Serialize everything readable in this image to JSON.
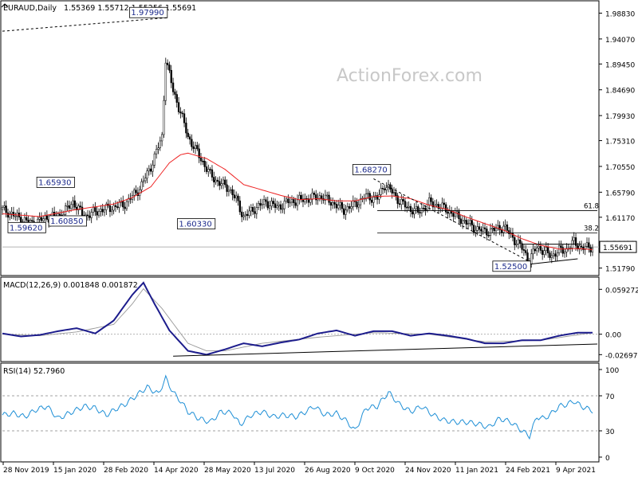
{
  "chart_data": {
    "type": "candlestick",
    "symbol": "EURAUD,Daily",
    "ohlc": "1.55369 1.55712 1.55256 1.55691",
    "watermark": "ActionForex.com",
    "last_price": "1.55691",
    "price_axis": {
      "range": [
        1.51,
        1.992
      ],
      "ticks": [
        "1.98830",
        "1.94070",
        "1.89450",
        "1.84690",
        "1.79930",
        "1.75310",
        "1.70550",
        "1.65790",
        "1.61170",
        "1.56410",
        "1.51790"
      ]
    },
    "x_axis": {
      "labels": [
        "28 Nov 2019",
        "15 Jan 2020",
        "28 Feb 2020",
        "14 Apr 2020",
        "28 May 2020",
        "13 Jul 2020",
        "26 Aug 2020",
        "9 Oct 2020",
        "24 Nov 2020",
        "11 Jan 2021",
        "24 Feb 2021",
        "9 Apr 2021"
      ]
    },
    "annotations": [
      {
        "text": "1.97990",
        "type": "high",
        "date": "mid Mar 2020",
        "value": 1.9799
      },
      {
        "text": "1.65930",
        "type": "high",
        "date": "late Dec 2019",
        "value": 1.6593
      },
      {
        "text": "1.59620",
        "type": "low",
        "date": "early Dec 2019",
        "value": 1.5962
      },
      {
        "text": "1.60850",
        "type": "low",
        "date": "late Dec 2019",
        "value": 1.6085
      },
      {
        "text": "1.60330",
        "type": "low",
        "date": "late May 2020",
        "value": 1.6033
      },
      {
        "text": "1.68270",
        "type": "high",
        "date": "Oct 2020",
        "value": 1.6827
      },
      {
        "text": "1.52500",
        "type": "low",
        "date": "Feb 2021",
        "value": 1.525
      }
    ],
    "fib_levels": [
      {
        "label": "61.8",
        "value": 1.6238
      },
      {
        "label": "38.2",
        "value": 1.5826
      }
    ],
    "series_close_approx": [
      [
        0,
        1.626
      ],
      [
        8,
        1.612
      ],
      [
        16,
        1.6
      ],
      [
        24,
        1.611
      ],
      [
        32,
        1.616
      ],
      [
        38,
        1.64
      ],
      [
        44,
        1.613
      ],
      [
        52,
        1.624
      ],
      [
        58,
        1.629
      ],
      [
        66,
        1.636
      ],
      [
        74,
        1.665
      ],
      [
        80,
        1.705
      ],
      [
        86,
        1.76
      ],
      [
        88,
        1.905
      ],
      [
        92,
        1.845
      ],
      [
        96,
        1.805
      ],
      [
        100,
        1.76
      ],
      [
        106,
        1.725
      ],
      [
        112,
        1.69
      ],
      [
        116,
        1.677
      ],
      [
        122,
        1.665
      ],
      [
        126,
        1.644
      ],
      [
        130,
        1.612
      ],
      [
        136,
        1.628
      ],
      [
        142,
        1.64
      ],
      [
        148,
        1.63
      ],
      [
        154,
        1.64
      ],
      [
        160,
        1.643
      ],
      [
        166,
        1.647
      ],
      [
        172,
        1.65
      ],
      [
        178,
        1.638
      ],
      [
        184,
        1.625
      ],
      [
        190,
        1.636
      ],
      [
        196,
        1.65
      ],
      [
        202,
        1.646
      ],
      [
        206,
        1.672
      ],
      [
        210,
        1.658
      ],
      [
        214,
        1.641
      ],
      [
        218,
        1.63
      ],
      [
        224,
        1.621
      ],
      [
        230,
        1.638
      ],
      [
        236,
        1.632
      ],
      [
        242,
        1.62
      ],
      [
        248,
        1.606
      ],
      [
        254,
        1.593
      ],
      [
        260,
        1.585
      ],
      [
        266,
        1.589
      ],
      [
        270,
        1.595
      ],
      [
        276,
        1.57
      ],
      [
        280,
        1.555
      ],
      [
        284,
        1.532
      ],
      [
        288,
        1.558
      ],
      [
        292,
        1.548
      ],
      [
        296,
        1.541
      ],
      [
        300,
        1.55
      ],
      [
        304,
        1.552
      ],
      [
        308,
        1.566
      ],
      [
        312,
        1.555
      ],
      [
        318,
        1.557
      ]
    ],
    "sma": {
      "range": [
        0,
        318
      ],
      "values_approx": [
        [
          0,
          1.618
        ],
        [
          20,
          1.613
        ],
        [
          40,
          1.626
        ],
        [
          60,
          1.636
        ],
        [
          70,
          1.648
        ],
        [
          80,
          1.668
        ],
        [
          90,
          1.712
        ],
        [
          96,
          1.727
        ],
        [
          100,
          1.73
        ],
        [
          110,
          1.72
        ],
        [
          120,
          1.7
        ],
        [
          130,
          1.672
        ],
        [
          140,
          1.662
        ],
        [
          150,
          1.652
        ],
        [
          160,
          1.644
        ],
        [
          170,
          1.646
        ],
        [
          180,
          1.642
        ],
        [
          190,
          1.642
        ],
        [
          200,
          1.65
        ],
        [
          210,
          1.651
        ],
        [
          220,
          1.646
        ],
        [
          230,
          1.634
        ],
        [
          240,
          1.626
        ],
        [
          250,
          1.612
        ],
        [
          260,
          1.6
        ],
        [
          270,
          1.588
        ],
        [
          280,
          1.572
        ],
        [
          290,
          1.56
        ],
        [
          300,
          1.553
        ],
        [
          310,
          1.554
        ],
        [
          318,
          1.552
        ]
      ]
    },
    "macd": {
      "label": "MACD(12,26,9) 0.001848 0.001872",
      "range": [
        -0.034,
        0.068
      ],
      "ticks": [
        "0.059272",
        "0.00",
        "-0.026978"
      ],
      "macd_approx": [
        [
          0,
          0.001
        ],
        [
          10,
          -0.003
        ],
        [
          20,
          -0.001
        ],
        [
          30,
          0.004
        ],
        [
          40,
          0.008
        ],
        [
          50,
          0.001
        ],
        [
          60,
          0.018
        ],
        [
          70,
          0.052
        ],
        [
          76,
          0.068
        ],
        [
          82,
          0.04
        ],
        [
          90,
          0.005
        ],
        [
          100,
          -0.022
        ],
        [
          110,
          -0.027
        ],
        [
          120,
          -0.02
        ],
        [
          130,
          -0.012
        ],
        [
          140,
          -0.016
        ],
        [
          150,
          -0.011
        ],
        [
          160,
          -0.007
        ],
        [
          170,
          0.001
        ],
        [
          180,
          0.005
        ],
        [
          190,
          -0.002
        ],
        [
          200,
          0.004
        ],
        [
          210,
          0.004
        ],
        [
          220,
          -0.002
        ],
        [
          230,
          0.001
        ],
        [
          240,
          -0.002
        ],
        [
          250,
          -0.006
        ],
        [
          260,
          -0.012
        ],
        [
          270,
          -0.012
        ],
        [
          280,
          -0.008
        ],
        [
          290,
          -0.008
        ],
        [
          300,
          -0.002
        ],
        [
          310,
          0.002
        ],
        [
          318,
          0.002
        ]
      ],
      "signal_approx": [
        [
          0,
          0.0
        ],
        [
          20,
          -0.002
        ],
        [
          40,
          0.003
        ],
        [
          60,
          0.013
        ],
        [
          70,
          0.04
        ],
        [
          76,
          0.06
        ],
        [
          86,
          0.034
        ],
        [
          100,
          -0.012
        ],
        [
          110,
          -0.022
        ],
        [
          120,
          -0.022
        ],
        [
          140,
          -0.012
        ],
        [
          170,
          -0.004
        ],
        [
          200,
          0.002
        ],
        [
          230,
          0.0
        ],
        [
          260,
          -0.01
        ],
        [
          290,
          -0.008
        ],
        [
          318,
          0.002
        ]
      ]
    },
    "rsi": {
      "label": "RSI(14) 52.7960",
      "range": [
        0,
        100
      ],
      "ticks": [
        "100",
        "70",
        "30",
        "0"
      ],
      "values_approx": [
        [
          0,
          48
        ],
        [
          6,
          50
        ],
        [
          12,
          46
        ],
        [
          18,
          54
        ],
        [
          24,
          58
        ],
        [
          30,
          44
        ],
        [
          36,
          50
        ],
        [
          44,
          58
        ],
        [
          50,
          56
        ],
        [
          56,
          48
        ],
        [
          62,
          56
        ],
        [
          66,
          60
        ],
        [
          72,
          70
        ],
        [
          78,
          80
        ],
        [
          84,
          72
        ],
        [
          88,
          90
        ],
        [
          92,
          74
        ],
        [
          96,
          64
        ],
        [
          100,
          52
        ],
        [
          106,
          44
        ],
        [
          112,
          40
        ],
        [
          118,
          52
        ],
        [
          124,
          50
        ],
        [
          128,
          37
        ],
        [
          134,
          48
        ],
        [
          140,
          52
        ],
        [
          146,
          46
        ],
        [
          152,
          48
        ],
        [
          158,
          46
        ],
        [
          162,
          50
        ],
        [
          168,
          58
        ],
        [
          174,
          48
        ],
        [
          180,
          50
        ],
        [
          186,
          40
        ],
        [
          190,
          30
        ],
        [
          196,
          56
        ],
        [
          202,
          58
        ],
        [
          208,
          74
        ],
        [
          214,
          60
        ],
        [
          220,
          52
        ],
        [
          226,
          58
        ],
        [
          232,
          48
        ],
        [
          238,
          42
        ],
        [
          244,
          40
        ],
        [
          250,
          40
        ],
        [
          256,
          38
        ],
        [
          262,
          34
        ],
        [
          268,
          44
        ],
        [
          274,
          40
        ],
        [
          280,
          30
        ],
        [
          284,
          24
        ],
        [
          288,
          46
        ],
        [
          292,
          44
        ],
        [
          296,
          50
        ],
        [
          300,
          58
        ],
        [
          304,
          60
        ],
        [
          308,
          64
        ],
        [
          312,
          58
        ],
        [
          318,
          53
        ]
      ]
    }
  }
}
